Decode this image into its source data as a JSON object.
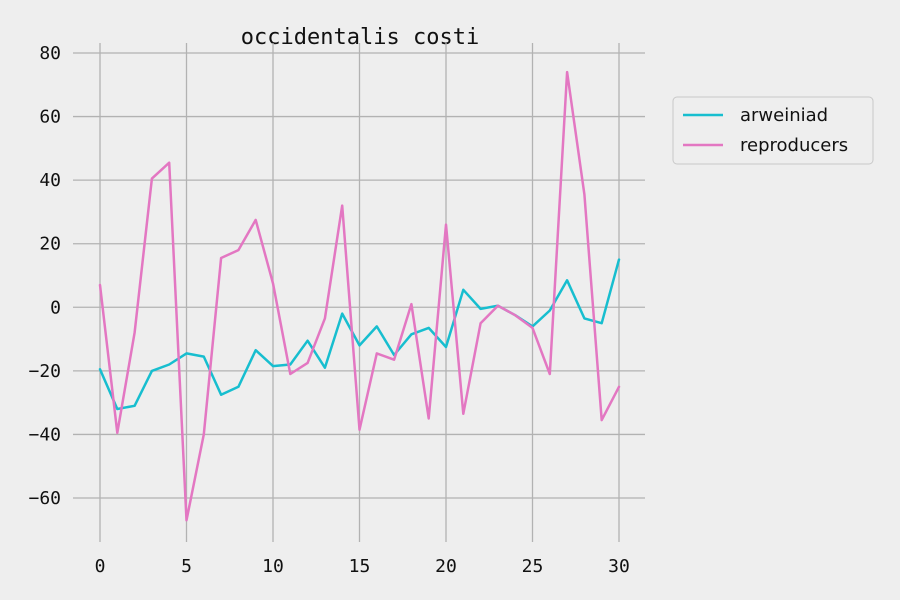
{
  "chart_data": {
    "type": "line",
    "title": "occidentalis costi",
    "xlabel": "",
    "ylabel": "",
    "xlim": [
      0,
      30
    ],
    "ylim": [
      -70,
      80
    ],
    "x_ticks": [
      "0",
      "5",
      "10",
      "15",
      "20",
      "25",
      "30"
    ],
    "y_ticks": [
      "80",
      "60",
      "40",
      "20",
      "0",
      "−20",
      "−40",
      "−60"
    ],
    "grid": true,
    "legend_position": "outside-right",
    "x": [
      0,
      1,
      2,
      3,
      4,
      5,
      6,
      7,
      8,
      9,
      10,
      11,
      12,
      13,
      14,
      15,
      16,
      17,
      18,
      19,
      20,
      21,
      22,
      23,
      24,
      25,
      26,
      27,
      28,
      29,
      30
    ],
    "series": [
      {
        "name": "arweiniad",
        "color": "#17becf",
        "values": [
          -19.5,
          -32,
          -31,
          -20,
          -18,
          -14.5,
          -15.5,
          -27.5,
          -25,
          -13.5,
          -18.5,
          -18,
          -10.5,
          -19,
          -2,
          -12,
          -6,
          -15,
          -8.5,
          -6.5,
          -12.5,
          5.5,
          -0.5,
          0.5,
          -2.5,
          -6,
          -1,
          8.5,
          -3.5,
          -5,
          15
        ]
      },
      {
        "name": "reproducers",
        "color": "#e377c2",
        "values": [
          7,
          -39.5,
          -8,
          40.5,
          45.5,
          -67,
          -40,
          15.5,
          18,
          27.5,
          7.5,
          -21,
          -17.5,
          -3.5,
          32,
          -38.5,
          -14.5,
          -16.5,
          1,
          -35,
          26,
          -33.5,
          -5,
          0.5,
          -2.5,
          -6.5,
          -21,
          74,
          35.5,
          -35.5,
          -25
        ]
      }
    ]
  }
}
